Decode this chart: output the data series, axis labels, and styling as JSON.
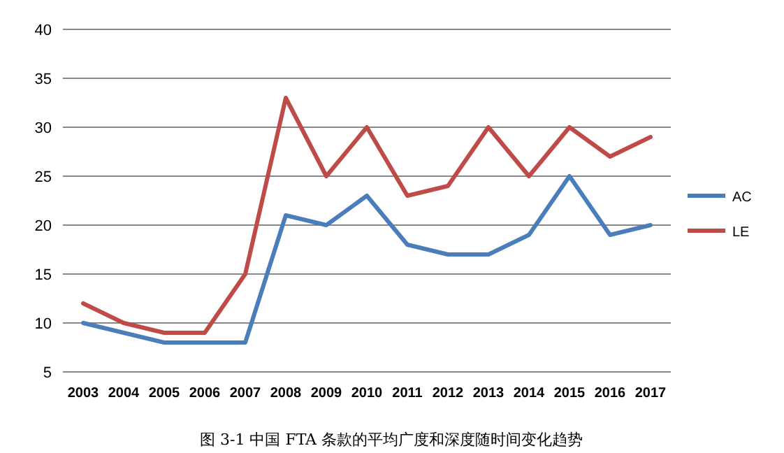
{
  "chart_data": {
    "type": "line",
    "categories": [
      "2003",
      "2004",
      "2005",
      "2006",
      "2007",
      "2008",
      "2009",
      "2010",
      "2011",
      "2012",
      "2013",
      "2014",
      "2015",
      "2016",
      "2017"
    ],
    "series": [
      {
        "name": "AC",
        "color": "#4a7ebb",
        "values": [
          10,
          9,
          8,
          8,
          8,
          21,
          20,
          23,
          18,
          17,
          17,
          19,
          25,
          19,
          20
        ]
      },
      {
        "name": "LE",
        "color": "#be4b48",
        "values": [
          12,
          10,
          9,
          9,
          15,
          33,
          25,
          30,
          23,
          24,
          30,
          25,
          30,
          27,
          29
        ]
      }
    ],
    "ylim": [
      5,
      40
    ],
    "yticks": [
      5,
      10,
      15,
      20,
      25,
      30,
      35,
      40
    ],
    "grid": "y",
    "legend": "right",
    "annotations": [
      "图 3-1   中国 FTA 条款的平均广度和深度随时间变化趋势"
    ]
  }
}
